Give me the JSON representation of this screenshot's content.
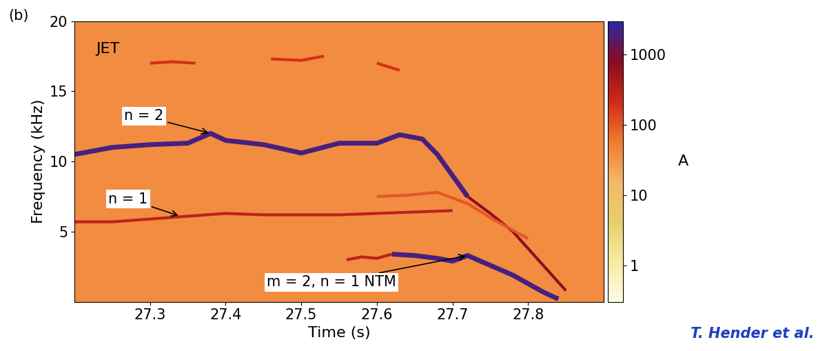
{
  "chart_data": {
    "type": "spectrogram",
    "panel_label": "(b)",
    "label": "JET",
    "x_label": "Time (s)",
    "y_label": "Frequency (kHz)",
    "xlim": [
      27.2,
      27.9
    ],
    "xticks": [
      27.3,
      27.4,
      27.5,
      27.6,
      27.7,
      27.8
    ],
    "ylim": [
      0,
      20
    ],
    "yticks": [
      5,
      10,
      15,
      20
    ],
    "background_amplitude": 40,
    "colorbar": {
      "label": "A",
      "range": [
        0.3,
        3000
      ],
      "ticks": [
        1,
        10,
        100,
        1000
      ]
    },
    "series": [
      {
        "amplitude": 2000,
        "x": [
          27.2,
          27.25,
          27.3,
          27.35,
          27.38,
          27.4,
          27.45,
          27.5,
          27.55,
          27.6,
          27.63,
          27.66,
          27.68,
          27.7,
          27.72
        ],
        "values": [
          10.5,
          11.0,
          11.2,
          11.3,
          12.0,
          11.5,
          11.2,
          10.6,
          11.3,
          11.3,
          11.9,
          11.6,
          10.5,
          9.0,
          7.5
        ]
      },
      {
        "amplitude": 700,
        "x": [
          27.72,
          27.75,
          27.78,
          27.8,
          27.83,
          27.85
        ],
        "values": [
          7.5,
          6.3,
          5.0,
          3.8,
          2.0,
          0.8
        ]
      },
      {
        "amplitude": 300,
        "x": [
          27.2,
          27.25,
          27.3,
          27.35,
          27.4,
          27.45,
          27.5,
          27.55,
          27.6,
          27.65,
          27.7
        ],
        "values": [
          5.7,
          5.7,
          5.9,
          6.1,
          6.3,
          6.2,
          6.2,
          6.2,
          6.3,
          6.4,
          6.5
        ]
      },
      {
        "amplitude": 300,
        "x": [
          27.56,
          27.58,
          27.6,
          27.62
        ],
        "values": [
          3.0,
          3.2,
          3.1,
          3.4
        ]
      },
      {
        "amplitude": 2000,
        "x": [
          27.62,
          27.65,
          27.68,
          27.7,
          27.72,
          27.75,
          27.78,
          27.8,
          27.82,
          27.84
        ],
        "values": [
          3.4,
          3.3,
          3.1,
          2.9,
          3.3,
          2.6,
          1.9,
          1.3,
          0.7,
          0.2
        ]
      },
      {
        "amplitude": 200,
        "x": [
          27.3,
          27.33,
          27.36,
          27.4,
          27.46,
          27.5,
          27.53,
          27.56,
          27.6,
          27.63
        ],
        "values": [
          17.0,
          17.1,
          17.0,
          null,
          17.3,
          17.2,
          17.5,
          null,
          17.0,
          16.5
        ]
      },
      {
        "amplitude": 100,
        "x": [
          27.6,
          27.64,
          27.68,
          27.7,
          27.72,
          27.75,
          27.8
        ],
        "values": [
          7.5,
          7.6,
          7.8,
          7.4,
          7.0,
          6.0,
          4.5
        ]
      }
    ],
    "annotations": [
      {
        "text": "n = 2",
        "x": 27.38,
        "y": 12.0
      },
      {
        "text": "n = 1",
        "x": 27.34,
        "y": 6.1
      },
      {
        "text": "m = 2, n = 1 NTM",
        "x": 27.72,
        "y": 3.3
      }
    ],
    "source": "T. Hender et al."
  }
}
